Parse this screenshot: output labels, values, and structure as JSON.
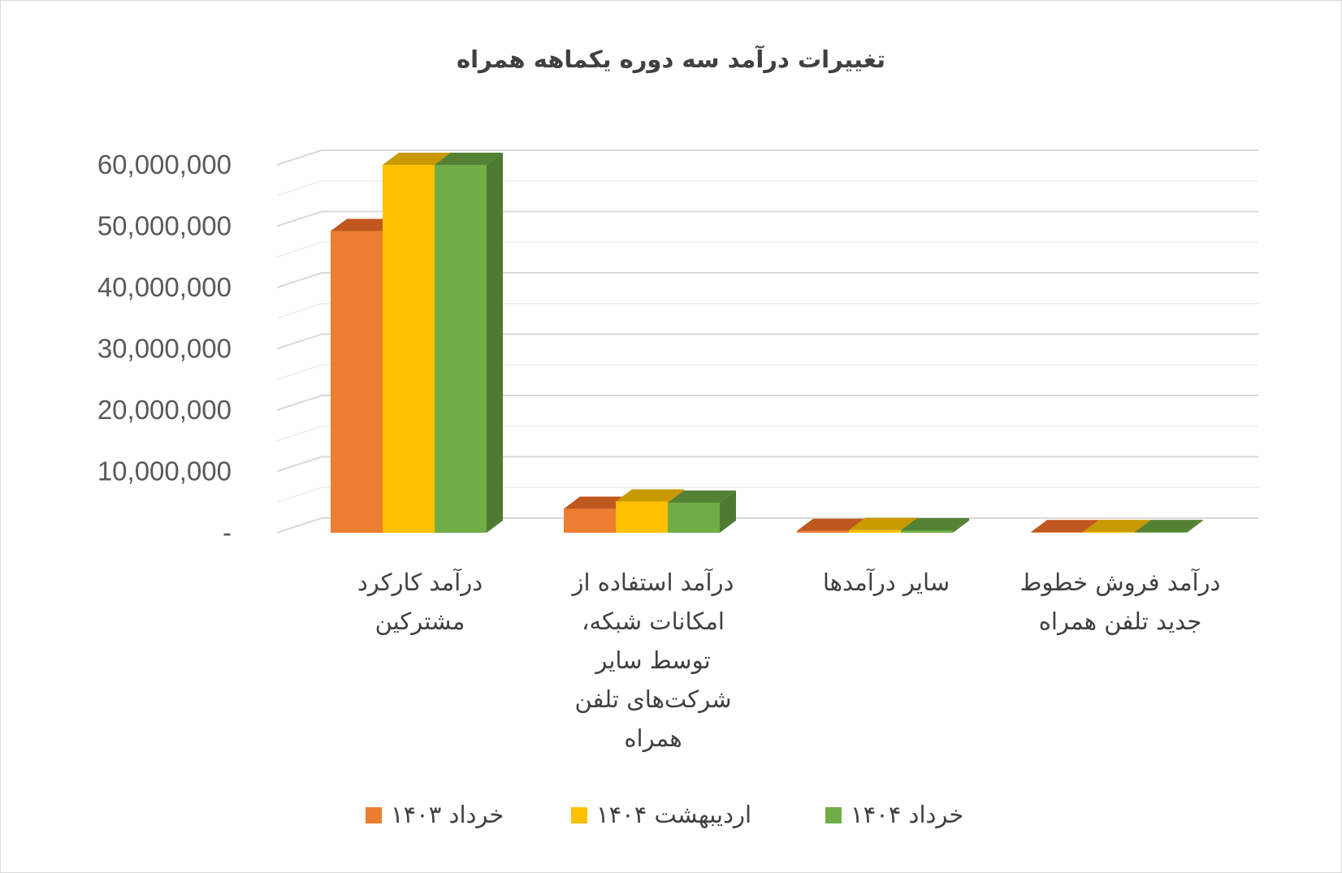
{
  "chart_data": {
    "type": "bar",
    "title": "تغییرات درآمد سه دوره یکماهه همراه",
    "categories": [
      [
        "درآمد کارکرد",
        "مشترکین"
      ],
      [
        "درآمد استفاده از",
        "امکانات شبکه،",
        "توسط سایر",
        "شرکت‌های تلفن",
        "همراه"
      ],
      [
        "سایر درآمدها"
      ],
      [
        "درآمد فروش خطوط",
        "جدید تلفن همراه"
      ]
    ],
    "series": [
      {
        "name": "خرداد ۱۴۰۳",
        "values": [
          49200000,
          3900000,
          300000,
          100000
        ],
        "color": "#ED7D31",
        "top_color": "#C0571E",
        "side_color": "#B9541A"
      },
      {
        "name": "اردیبهشت ۱۴۰۴",
        "values": [
          60000000,
          5100000,
          450000,
          120000
        ],
        "color": "#FFC000",
        "top_color": "#C89A00",
        "side_color": "#C39300"
      },
      {
        "name": "خرداد ۱۴۰۴",
        "values": [
          60000000,
          4900000,
          400000,
          110000
        ],
        "color": "#70AD47",
        "top_color": "#548235",
        "side_color": "#4E7A31"
      }
    ],
    "yticks": [
      "-",
      "10,000,000",
      "20,000,000",
      "30,000,000",
      "40,000,000",
      "50,000,000",
      "60,000,000"
    ],
    "ylim": [
      0,
      60000000
    ],
    "grid": true,
    "legend_position": "bottom",
    "gridline_color": "#d9d9d9",
    "minor_gridline_color": "#eeeeee"
  }
}
